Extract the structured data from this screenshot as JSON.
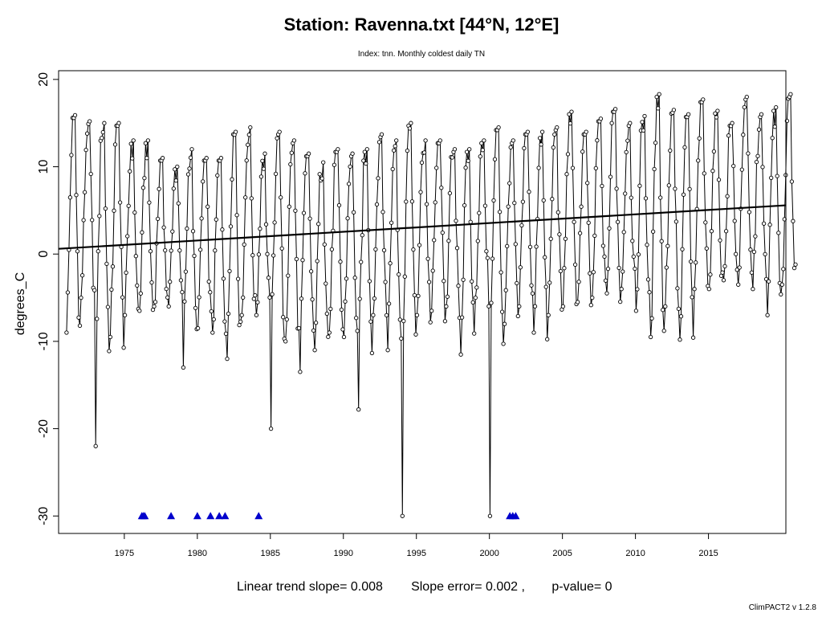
{
  "chart_data": {
    "type": "line",
    "title": "Station: Ravenna.txt [44°N, 12°E]",
    "subtitle": "Index: tnn. Monthly coldest daily TN",
    "ylabel": "degrees_C",
    "xlabel": "",
    "xlim": [
      1970.5,
      2020.3
    ],
    "ylim": [
      -32,
      21
    ],
    "x_ticks": [
      "1975",
      "1980",
      "1985",
      "1990",
      "1995",
      "2000",
      "2005",
      "2010",
      "2015"
    ],
    "y_ticks": [
      "-30",
      "-20",
      "-10",
      "0",
      "10",
      "20"
    ],
    "grid": false,
    "legend": "none",
    "series_color": "#000000",
    "trend_color": "#000000",
    "missing_marker_color": "#0000cc",
    "trend_line": {
      "slope": 0.1,
      "intercept_at_1970_5": 0.6
    },
    "missing_value_y": -30,
    "missing_value_x": [
      1976.2,
      1976.3,
      1976.4,
      1978.2,
      1980.0,
      1980.9,
      1981.5,
      1981.9,
      1984.2,
      2001.4,
      2001.6,
      2001.8
    ],
    "annual_max": [
      15.9,
      15.2,
      15.0,
      15.0,
      13.0,
      13.0,
      11.0,
      10.0,
      12.0,
      11.0,
      11.0,
      14.0,
      14.5,
      11.5,
      14.0,
      13.0,
      11.5,
      10.5,
      12.0,
      11.5,
      12.0,
      13.7,
      13.0,
      15.0,
      13.0,
      13.0,
      12.0,
      12.0,
      13.0,
      14.5,
      13.0,
      14.0,
      14.0,
      14.5,
      16.3,
      14.0,
      15.5,
      16.6,
      15.0,
      15.8,
      18.3,
      16.5,
      16.0,
      17.7,
      16.4,
      15.0,
      18.0,
      16.0,
      16.8,
      18.3
    ],
    "annual_min": [
      -9.0,
      -5.0,
      -22.0,
      -9.5,
      -7.0,
      -6.5,
      -6.0,
      -6.0,
      -13.0,
      -8.5,
      -9.0,
      -12.0,
      -7.0,
      -7.0,
      -20.0,
      -10.0,
      -13.5,
      -11.0,
      -9.0,
      -9.5,
      -17.8,
      -7.0,
      -11.0,
      -30.0,
      -7.0,
      -6.5,
      -6.0,
      -11.5,
      -5.0,
      -30.0,
      -8.0,
      -6.0,
      -9.0,
      -7.0,
      -6.0,
      -5.5,
      -5.0,
      -4.5,
      -4.0,
      -6.5,
      -9.5,
      -6.0,
      -9.8,
      -4.0,
      -4.0,
      -3.0,
      -3.5,
      -4.0,
      -7.0,
      -3.5
    ]
  },
  "footer": {
    "slope_text": "Linear trend slope= 0.008",
    "error_text": "Slope error= 0.002 ,",
    "pvalue_text": "p-value= 0"
  },
  "version": "ClimPACT2 v 1.2.8"
}
